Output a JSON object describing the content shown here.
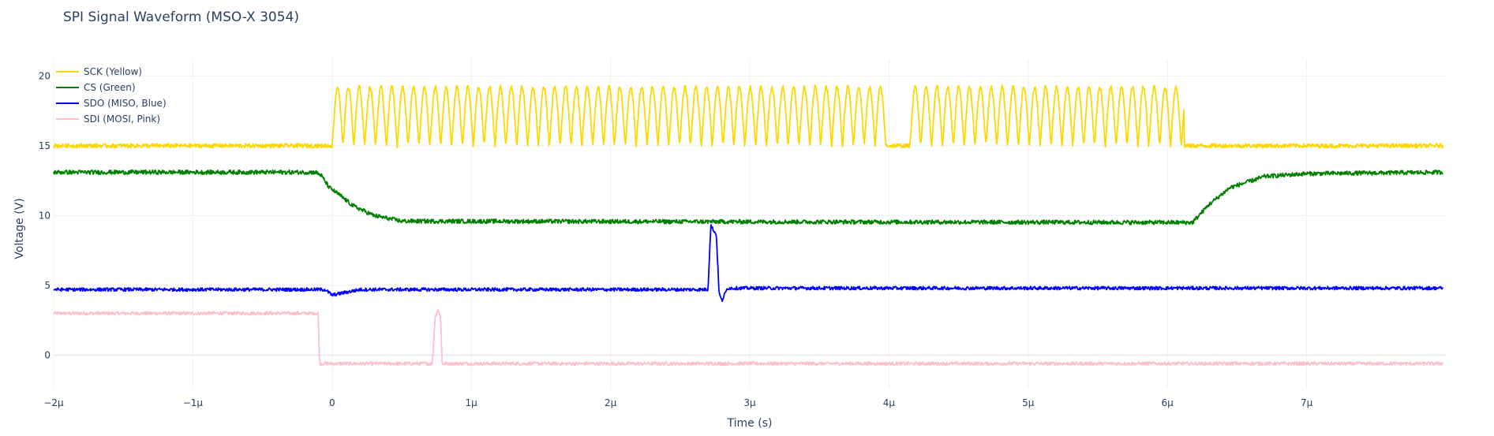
{
  "chart_data": {
    "type": "line",
    "title": "SPI Signal Waveform (MSO-X 3054)",
    "xlabel": "Time (s)",
    "ylabel": "Voltage (V)",
    "xlim": [
      -2e-06,
      8e-06
    ],
    "ylim": [
      -2.4,
      21.2
    ],
    "x_ticks": [
      -2e-06,
      -1e-06,
      0,
      1e-06,
      2e-06,
      3e-06,
      4e-06,
      5e-06,
      6e-06,
      7e-06
    ],
    "x_tick_labels": [
      "−2μ",
      "−1μ",
      "0",
      "1μ",
      "2μ",
      "3μ",
      "4μ",
      "5μ",
      "6μ",
      "7μ"
    ],
    "y_ticks": [
      0,
      5,
      10,
      15,
      20
    ],
    "y_tick_labels": [
      "0",
      "5",
      "10",
      "15",
      "20"
    ],
    "grid": true,
    "legend_position": "top-left",
    "series": [
      {
        "name": "SCK (Yellow)",
        "color": "#FFD700",
        "kind": "clock",
        "low_v": 15.0,
        "high_v": 19.2,
        "clock_period_s": 7.8e-08,
        "bursts_s": [
          [
            0.0,
            3.98e-06
          ],
          [
            4.15e-06,
            6.12e-06
          ]
        ],
        "noise_v": 0.15
      },
      {
        "name": "CS (Green)",
        "color": "#008000",
        "kind": "piecewise",
        "points": [
          [
            -2e-06,
            13.1
          ],
          [
            -1.2e-07,
            13.1
          ],
          [
            -8e-08,
            12.9
          ],
          [
            -2e-08,
            12.0
          ],
          [
            5e-08,
            11.5
          ],
          [
            1.5e-07,
            10.7
          ],
          [
            3e-07,
            10.0
          ],
          [
            5e-07,
            9.6
          ],
          [
            6.18e-06,
            9.5
          ],
          [
            6.3e-06,
            10.8
          ],
          [
            6.45e-06,
            12.0
          ],
          [
            6.7e-06,
            12.8
          ],
          [
            7e-06,
            13.0
          ],
          [
            7.98e-06,
            13.1
          ]
        ],
        "noise_v": 0.15
      },
      {
        "name": "SDO (MISO, Blue)",
        "color": "#0000FF",
        "kind": "piecewise",
        "points": [
          [
            -2e-06,
            4.7
          ],
          [
            -5e-08,
            4.7
          ],
          [
            0.0,
            4.3
          ],
          [
            1e-07,
            4.5
          ],
          [
            2e-07,
            4.7
          ],
          [
            2.7e-06,
            4.7
          ],
          [
            2.72e-06,
            9.3
          ],
          [
            2.76e-06,
            8.6
          ],
          [
            2.78e-06,
            4.4
          ],
          [
            2.8e-06,
            3.9
          ],
          [
            2.84e-06,
            4.8
          ],
          [
            7.98e-06,
            4.8
          ]
        ],
        "noise_v": 0.12
      },
      {
        "name": "SDI (MOSI, Pink)",
        "color": "#FFC0CB",
        "kind": "piecewise",
        "points": [
          [
            -2e-06,
            3.0
          ],
          [
            -1e-07,
            3.0
          ],
          [
            -9e-08,
            -0.6
          ],
          [
            7.2e-07,
            -0.6
          ],
          [
            7.4e-07,
            2.7
          ],
          [
            7.6e-07,
            3.3
          ],
          [
            7.8e-07,
            2.7
          ],
          [
            7.9e-07,
            -0.6
          ],
          [
            7.98e-06,
            -0.6
          ]
        ],
        "noise_v": 0.12
      }
    ]
  }
}
